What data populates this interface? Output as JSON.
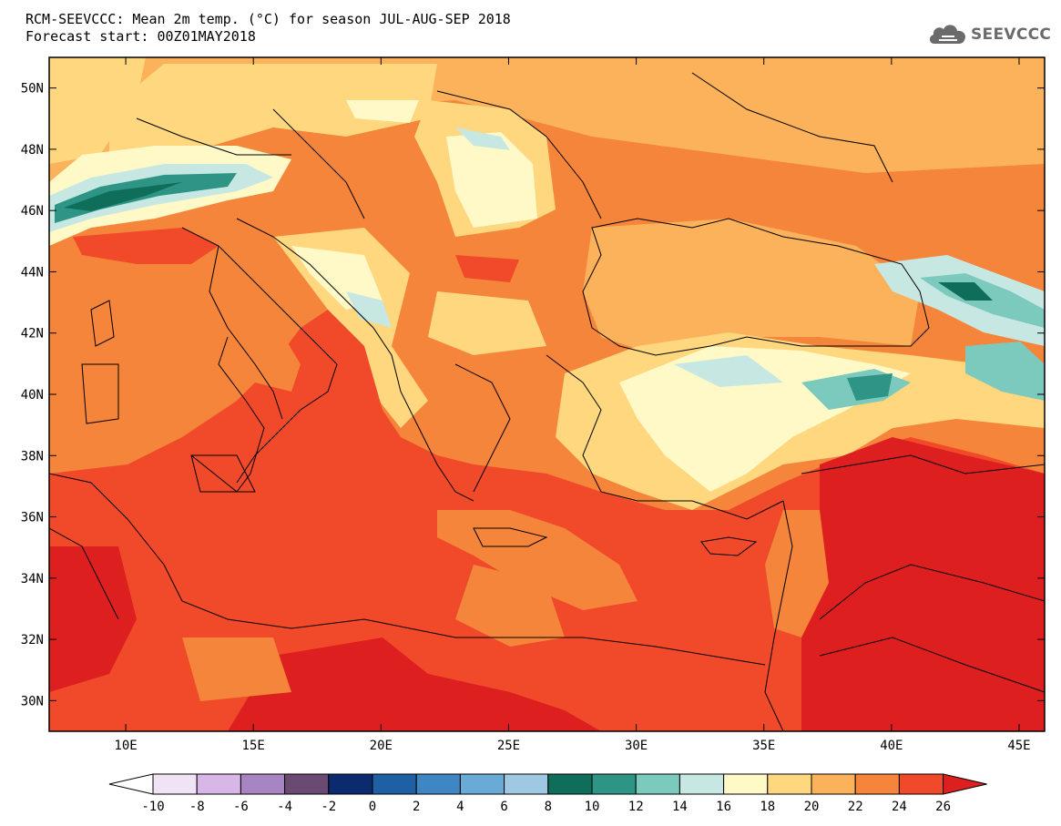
{
  "header": {
    "title": "RCM-SEEVCCC: Mean 2m temp. (°C) for season JUL-AUG-SEP 2018",
    "subtitle": "Forecast start: 00Z01MAY2018"
  },
  "logo": {
    "text": "SEEVCCC",
    "icon": "cloud-icon"
  },
  "map": {
    "lat_range": [
      29,
      51
    ],
    "lon_range": [
      7,
      46
    ],
    "lat_labels": [
      "50N",
      "48N",
      "46N",
      "44N",
      "42N",
      "40N",
      "38N",
      "36N",
      "34N",
      "32N",
      "30N"
    ],
    "lon_labels": [
      "10E",
      "15E",
      "20E",
      "25E",
      "30E",
      "35E",
      "40E",
      "45E"
    ],
    "lat_values": [
      50,
      48,
      46,
      44,
      42,
      40,
      38,
      36,
      34,
      32,
      30
    ],
    "lon_values": [
      10,
      15,
      20,
      25,
      30,
      35,
      40,
      45
    ]
  },
  "colorbar": {
    "labels": [
      "-10",
      "-8",
      "-6",
      "-4",
      "-2",
      "0",
      "2",
      "4",
      "6",
      "8",
      "10",
      "12",
      "14",
      "16",
      "18",
      "20",
      "22",
      "24",
      "26"
    ],
    "colors": [
      "#efe3f5",
      "#d8b6e8",
      "#a784c2",
      "#6a4a73",
      "#0b2b6e",
      "#1f5fa3",
      "#3f87c2",
      "#6aaad6",
      "#9fc8e3",
      "#0f6e5a",
      "#2e9486",
      "#7cc9bd",
      "#c7e8e2",
      "#fff9c8",
      "#fed77e",
      "#fbb25a",
      "#f5853a",
      "#f04a2a",
      "#dd1f1f"
    ],
    "under_color": "#ffffff",
    "over_color": "#dd1f1f"
  }
}
